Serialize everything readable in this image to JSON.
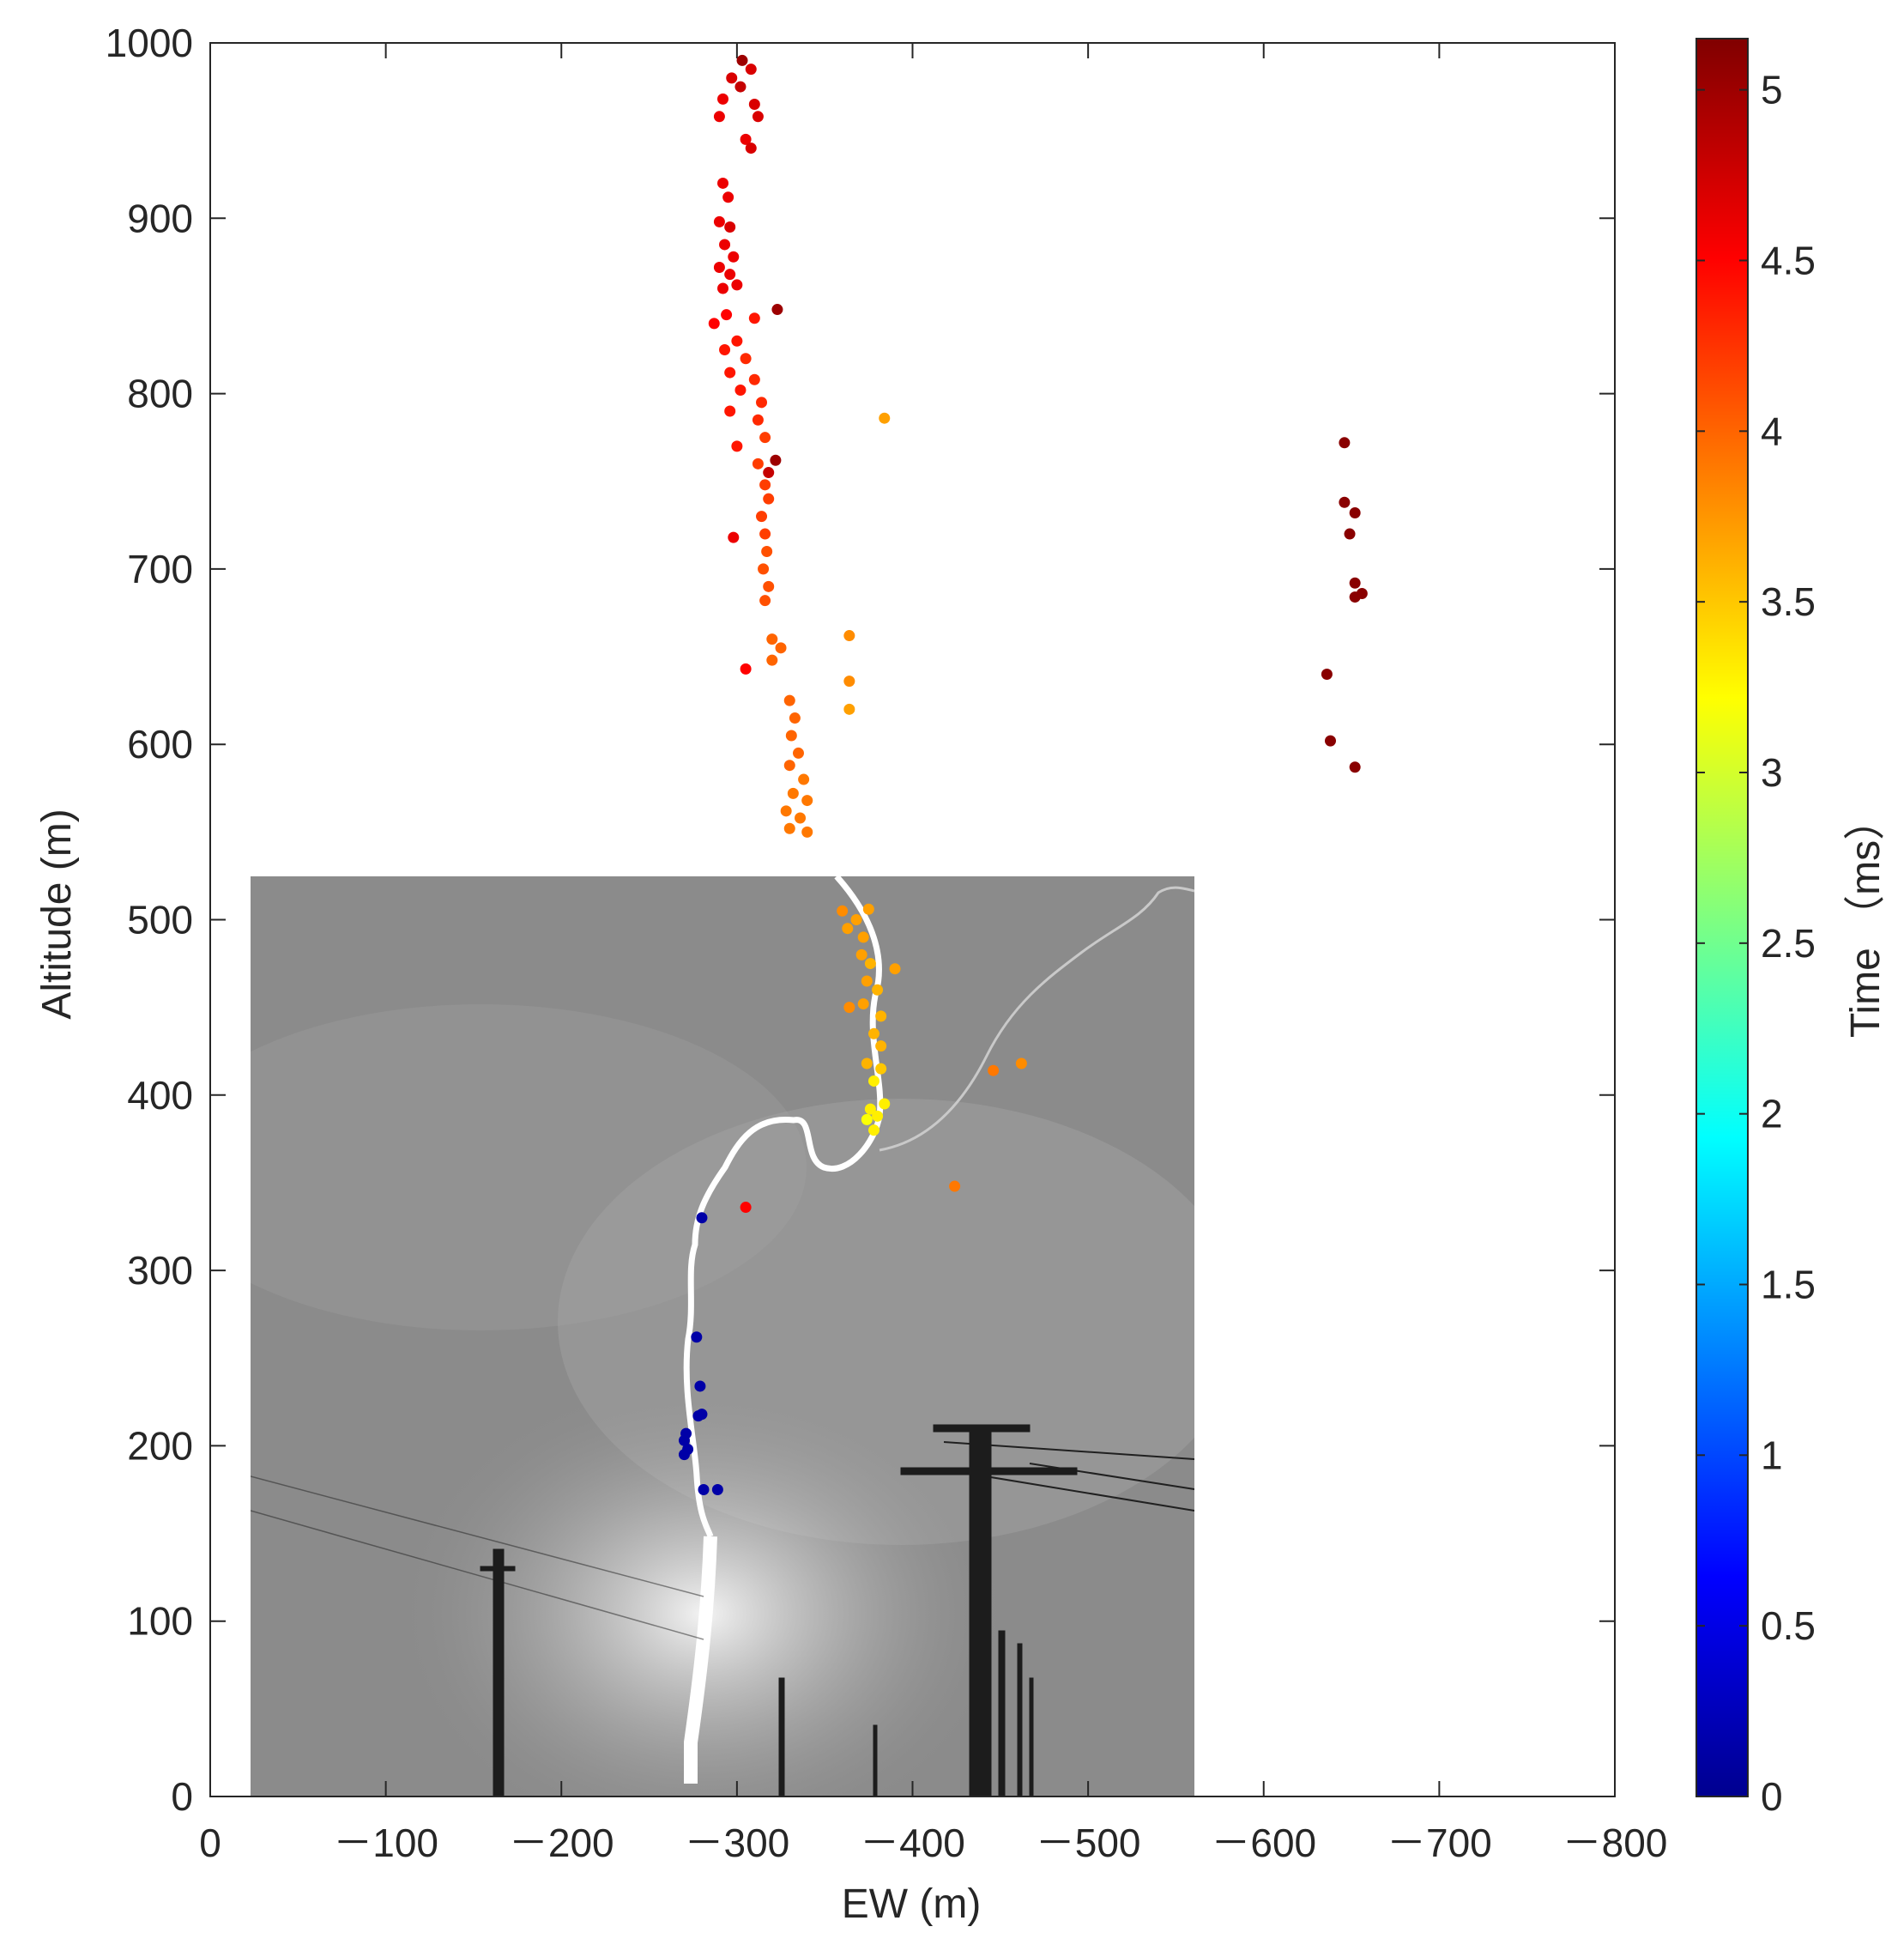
{
  "chart_data": {
    "type": "scatter",
    "title": "",
    "xlabel": "EW (m)",
    "ylabel": "Altitude (m)",
    "colorbar_label": "Time （ms）",
    "xlim": [
      0,
      -800
    ],
    "ylim": [
      0,
      1000
    ],
    "clim": [
      0,
      5.15
    ],
    "colormap": "jet",
    "grid": false,
    "x_ticks": [
      0,
      -100,
      -200,
      -300,
      -400,
      -500,
      -600,
      -700,
      -800
    ],
    "x_tick_labels": [
      "0",
      "－100",
      "－200",
      "－300",
      "－400",
      "－500",
      "－600",
      "－700",
      "－800"
    ],
    "y_ticks": [
      0,
      100,
      200,
      300,
      400,
      500,
      600,
      700,
      800,
      900,
      1000
    ],
    "y_tick_labels": [
      "0",
      "100",
      "200",
      "300",
      "400",
      "500",
      "600",
      "700",
      "800",
      "900",
      "1000"
    ],
    "colorbar_ticks": [
      0,
      0.5,
      1,
      1.5,
      2,
      2.5,
      3,
      3.5,
      4,
      4.5,
      5
    ],
    "colorbar_tick_labels": [
      "0",
      "0.5",
      "1",
      "1.5",
      "2",
      "2.5",
      "3",
      "3.5",
      "4",
      "4.5",
      "5"
    ],
    "inset_photo": {
      "description": "lightning photograph",
      "x_range": [
        -23,
        -560
      ],
      "y_range": [
        0,
        525
      ]
    },
    "points": [
      {
        "x": -303,
        "y": 990,
        "t": 5.0
      },
      {
        "x": -308,
        "y": 985,
        "t": 4.7
      },
      {
        "x": -297,
        "y": 980,
        "t": 4.7
      },
      {
        "x": -302,
        "y": 975,
        "t": 4.8
      },
      {
        "x": -310,
        "y": 965,
        "t": 4.7
      },
      {
        "x": -292,
        "y": 968,
        "t": 4.6
      },
      {
        "x": -290,
        "y": 958,
        "t": 4.6
      },
      {
        "x": -312,
        "y": 958,
        "t": 4.7
      },
      {
        "x": -305,
        "y": 945,
        "t": 4.6
      },
      {
        "x": -308,
        "y": 940,
        "t": 4.7
      },
      {
        "x": -292,
        "y": 920,
        "t": 4.6
      },
      {
        "x": -295,
        "y": 912,
        "t": 4.6
      },
      {
        "x": -290,
        "y": 898,
        "t": 4.6
      },
      {
        "x": -296,
        "y": 895,
        "t": 4.7
      },
      {
        "x": -293,
        "y": 885,
        "t": 4.6
      },
      {
        "x": -298,
        "y": 878,
        "t": 4.6
      },
      {
        "x": -290,
        "y": 872,
        "t": 4.6
      },
      {
        "x": -296,
        "y": 868,
        "t": 4.6
      },
      {
        "x": -292,
        "y": 860,
        "t": 4.6
      },
      {
        "x": -300,
        "y": 862,
        "t": 4.6
      },
      {
        "x": -323,
        "y": 848,
        "t": 5.0
      },
      {
        "x": -287,
        "y": 840,
        "t": 4.5
      },
      {
        "x": -294,
        "y": 845,
        "t": 4.5
      },
      {
        "x": -310,
        "y": 843,
        "t": 4.4
      },
      {
        "x": -300,
        "y": 830,
        "t": 4.4
      },
      {
        "x": -293,
        "y": 825,
        "t": 4.4
      },
      {
        "x": -305,
        "y": 820,
        "t": 4.3
      },
      {
        "x": -296,
        "y": 812,
        "t": 4.4
      },
      {
        "x": -310,
        "y": 808,
        "t": 4.3
      },
      {
        "x": -302,
        "y": 802,
        "t": 4.4
      },
      {
        "x": -314,
        "y": 795,
        "t": 4.3
      },
      {
        "x": -296,
        "y": 790,
        "t": 4.4
      },
      {
        "x": -312,
        "y": 785,
        "t": 4.3
      },
      {
        "x": -316,
        "y": 775,
        "t": 4.2
      },
      {
        "x": -300,
        "y": 770,
        "t": 4.4
      },
      {
        "x": -322,
        "y": 762,
        "t": 5.0
      },
      {
        "x": -318,
        "y": 755,
        "t": 4.8
      },
      {
        "x": -312,
        "y": 760,
        "t": 4.2
      },
      {
        "x": -316,
        "y": 748,
        "t": 4.2
      },
      {
        "x": -318,
        "y": 740,
        "t": 4.2
      },
      {
        "x": -314,
        "y": 730,
        "t": 4.2
      },
      {
        "x": -316,
        "y": 720,
        "t": 4.2
      },
      {
        "x": -298,
        "y": 718,
        "t": 4.6
      },
      {
        "x": -317,
        "y": 710,
        "t": 4.1
      },
      {
        "x": -315,
        "y": 700,
        "t": 4.1
      },
      {
        "x": -318,
        "y": 690,
        "t": 4.1
      },
      {
        "x": -316,
        "y": 682,
        "t": 4.1
      },
      {
        "x": -384,
        "y": 786,
        "t": 3.7
      },
      {
        "x": -320,
        "y": 660,
        "t": 4.0
      },
      {
        "x": -325,
        "y": 655,
        "t": 4.0
      },
      {
        "x": -320,
        "y": 648,
        "t": 4.0
      },
      {
        "x": -305,
        "y": 643,
        "t": 4.5
      },
      {
        "x": -330,
        "y": 625,
        "t": 4.0
      },
      {
        "x": -333,
        "y": 615,
        "t": 4.0
      },
      {
        "x": -331,
        "y": 605,
        "t": 4.0
      },
      {
        "x": -335,
        "y": 595,
        "t": 4.0
      },
      {
        "x": -330,
        "y": 588,
        "t": 4.0
      },
      {
        "x": -338,
        "y": 580,
        "t": 3.9
      },
      {
        "x": -332,
        "y": 572,
        "t": 3.9
      },
      {
        "x": -340,
        "y": 568,
        "t": 3.9
      },
      {
        "x": -328,
        "y": 562,
        "t": 3.9
      },
      {
        "x": -336,
        "y": 558,
        "t": 3.9
      },
      {
        "x": -330,
        "y": 552,
        "t": 3.9
      },
      {
        "x": -340,
        "y": 550,
        "t": 3.9
      },
      {
        "x": -364,
        "y": 662,
        "t": 3.8
      },
      {
        "x": -364,
        "y": 636,
        "t": 3.8
      },
      {
        "x": -364,
        "y": 620,
        "t": 3.7
      },
      {
        "x": -646,
        "y": 772,
        "t": 5.1
      },
      {
        "x": -646,
        "y": 738,
        "t": 5.1
      },
      {
        "x": -652,
        "y": 732,
        "t": 5.1
      },
      {
        "x": -649,
        "y": 720,
        "t": 5.1
      },
      {
        "x": -652,
        "y": 692,
        "t": 5.1
      },
      {
        "x": -656,
        "y": 686,
        "t": 5.1
      },
      {
        "x": -652,
        "y": 684,
        "t": 5.1
      },
      {
        "x": -636,
        "y": 640,
        "t": 5.1
      },
      {
        "x": -638,
        "y": 602,
        "t": 5.1
      },
      {
        "x": -652,
        "y": 587,
        "t": 5.1
      },
      {
        "x": -360,
        "y": 505,
        "t": 3.8
      },
      {
        "x": -368,
        "y": 500,
        "t": 3.7
      },
      {
        "x": -375,
        "y": 506,
        "t": 3.7
      },
      {
        "x": -363,
        "y": 495,
        "t": 3.7
      },
      {
        "x": -372,
        "y": 490,
        "t": 3.7
      },
      {
        "x": -371,
        "y": 480,
        "t": 3.7
      },
      {
        "x": -376,
        "y": 475,
        "t": 3.6
      },
      {
        "x": -390,
        "y": 472,
        "t": 3.7
      },
      {
        "x": -374,
        "y": 465,
        "t": 3.7
      },
      {
        "x": -380,
        "y": 460,
        "t": 3.6
      },
      {
        "x": -372,
        "y": 452,
        "t": 3.7
      },
      {
        "x": -364,
        "y": 450,
        "t": 3.8
      },
      {
        "x": -382,
        "y": 445,
        "t": 3.6
      },
      {
        "x": -378,
        "y": 435,
        "t": 3.6
      },
      {
        "x": -382,
        "y": 428,
        "t": 3.6
      },
      {
        "x": -374,
        "y": 418,
        "t": 3.6
      },
      {
        "x": -382,
        "y": 415,
        "t": 3.5
      },
      {
        "x": -378,
        "y": 408,
        "t": 3.3
      },
      {
        "x": -384,
        "y": 395,
        "t": 3.3
      },
      {
        "x": -376,
        "y": 392,
        "t": 3.3
      },
      {
        "x": -380,
        "y": 388,
        "t": 3.3
      },
      {
        "x": -374,
        "y": 386,
        "t": 3.2
      },
      {
        "x": -378,
        "y": 380,
        "t": 3.3
      },
      {
        "x": -462,
        "y": 418,
        "t": 3.8
      },
      {
        "x": -446,
        "y": 414,
        "t": 3.9
      },
      {
        "x": -424,
        "y": 348,
        "t": 3.9
      },
      {
        "x": -305,
        "y": 336,
        "t": 4.5
      },
      {
        "x": -280,
        "y": 330,
        "t": 0.2
      },
      {
        "x": -277,
        "y": 262,
        "t": 0.2
      },
      {
        "x": -279,
        "y": 234,
        "t": 0.2
      },
      {
        "x": -280,
        "y": 218,
        "t": 0.2
      },
      {
        "x": -278,
        "y": 217,
        "t": 0.2
      },
      {
        "x": -271,
        "y": 207,
        "t": 0.2
      },
      {
        "x": -270,
        "y": 203,
        "t": 0.2
      },
      {
        "x": -272,
        "y": 198,
        "t": 0.2
      },
      {
        "x": -270,
        "y": 195,
        "t": 0.2
      },
      {
        "x": -281,
        "y": 175,
        "t": 0.2
      },
      {
        "x": -289,
        "y": 175,
        "t": 0.2
      }
    ]
  }
}
